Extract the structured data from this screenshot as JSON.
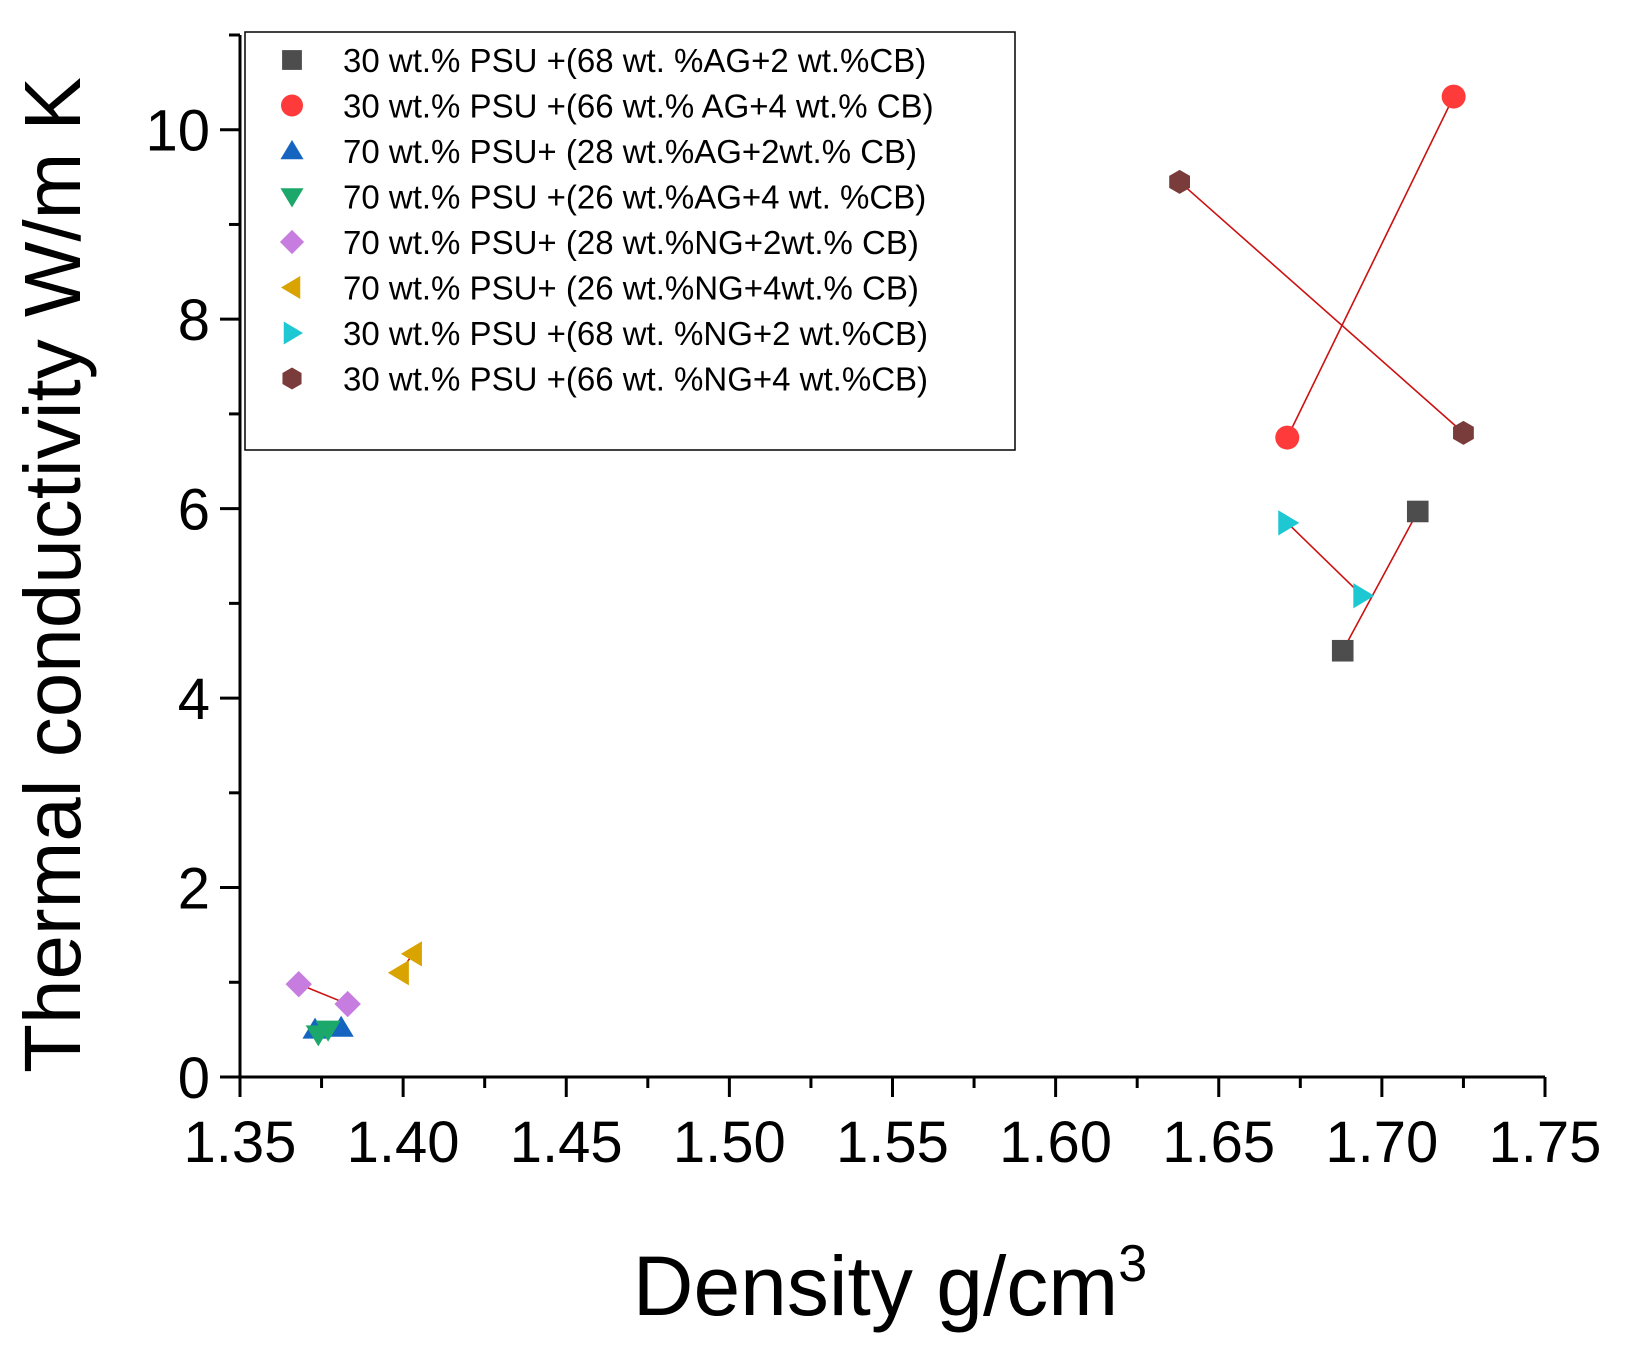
{
  "chart_data": {
    "type": "scatter",
    "title": "",
    "xlabel": "Density g/cm",
    "xlabel_superscript": "3",
    "ylabel": "Thermal conductivity W/m K",
    "xlim": [
      1.35,
      1.75
    ],
    "ylim": [
      0,
      11
    ],
    "xticks": [
      "1.35",
      "1.40",
      "1.45",
      "1.50",
      "1.55",
      "1.60",
      "1.65",
      "1.70",
      "1.75"
    ],
    "yticks": [
      "0",
      "2",
      "4",
      "6",
      "8",
      "10"
    ],
    "grid": false,
    "legend_position": "top-left",
    "series": [
      {
        "name": "30 wt.% PSU +(68 wt. %AG+2 wt.%CB)",
        "marker": "square",
        "color": "#4d4d4d",
        "x": [
          1.688,
          1.711
        ],
        "y": [
          4.5,
          5.97
        ],
        "connected": true
      },
      {
        "name": "30 wt.% PSU +(66 wt.% AG+4 wt.% CB)",
        "marker": "circle",
        "color": "#ff3a3a",
        "x": [
          1.671,
          1.722
        ],
        "y": [
          6.75,
          10.35
        ],
        "connected": true
      },
      {
        "name": "70 wt.% PSU+ (28 wt.%AG+2wt.% CB)",
        "marker": "triangle-up",
        "color": "#1565c0",
        "x": [
          1.373,
          1.381
        ],
        "y": [
          0.5,
          0.52
        ],
        "connected": true
      },
      {
        "name": "70 wt.% PSU +(26 wt.%AG+4 wt. %CB)",
        "marker": "triangle-down",
        "color": "#1ca86a",
        "x": [
          1.374,
          1.377
        ],
        "y": [
          0.45,
          0.5
        ],
        "connected": true
      },
      {
        "name": "70 wt.% PSU+ (28 wt.%NG+2wt.% CB)",
        "marker": "diamond",
        "color": "#c77de0",
        "x": [
          1.368,
          1.383
        ],
        "y": [
          0.98,
          0.77
        ],
        "connected": true
      },
      {
        "name": "70 wt.% PSU+ (26 wt.%NG+4wt.% CB)",
        "marker": "triangle-left",
        "color": "#d9a300",
        "x": [
          1.399,
          1.403
        ],
        "y": [
          1.1,
          1.3
        ],
        "connected": true
      },
      {
        "name": "30 wt.% PSU +(68 wt. %NG+2 wt.%CB)",
        "marker": "triangle-right",
        "color": "#1ec8d2",
        "x": [
          1.671,
          1.694
        ],
        "y": [
          5.85,
          5.08
        ],
        "connected": true
      },
      {
        "name": "30 wt.% PSU +(66 wt. %NG+4 wt.%CB)",
        "marker": "hexagon",
        "color": "#7a3b3b",
        "x": [
          1.638,
          1.725
        ],
        "y": [
          9.45,
          6.8
        ],
        "connected": true
      }
    ],
    "connector_color": "#cc1111"
  }
}
